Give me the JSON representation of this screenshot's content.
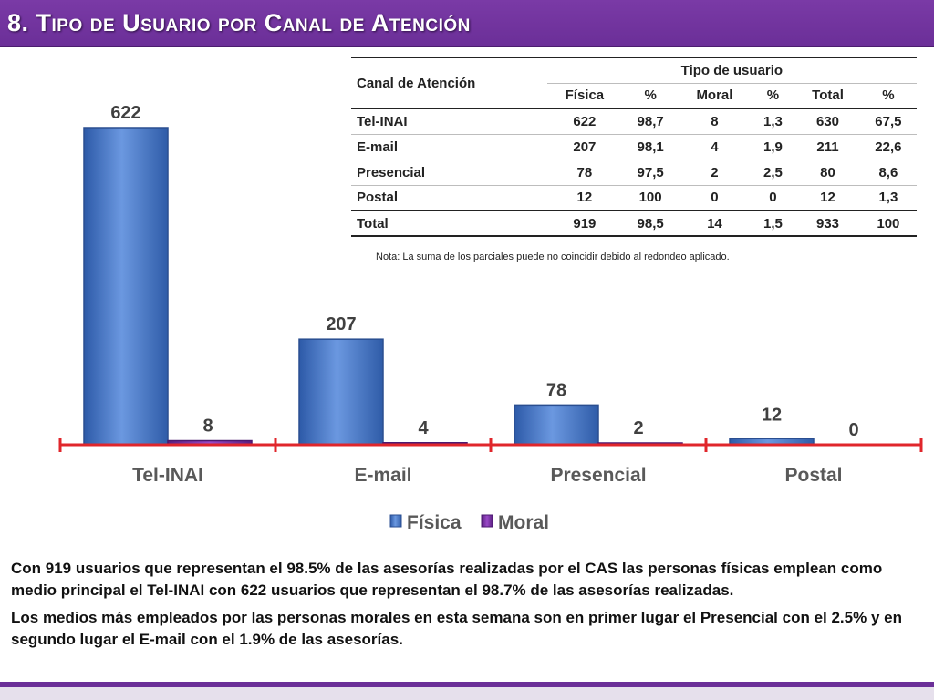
{
  "title": "8. Tipo de Usuario por Canal de Atención",
  "chart_data": {
    "type": "bar",
    "categories": [
      "Tel-INAI",
      "E-mail",
      "Presencial",
      "Postal"
    ],
    "series": [
      {
        "name": "Física",
        "values": [
          622,
          207,
          78,
          12
        ]
      },
      {
        "name": "Moral",
        "values": [
          8,
          4,
          2,
          0
        ]
      }
    ],
    "value_labels": [
      [
        "622",
        "8"
      ],
      [
        "207",
        "4"
      ],
      [
        "78",
        "2"
      ],
      [
        "12",
        "0"
      ]
    ],
    "ylim": [
      0,
      700
    ],
    "grid": false,
    "legend": "bottom",
    "colors": {
      "fisica": "#4a78c8",
      "moral": "#7a2fa0",
      "axis": "#e0262b"
    }
  },
  "table": {
    "header_canal": "Canal de Atención",
    "header_group": "Tipo de usuario",
    "columns": [
      "Física",
      "%",
      "Moral",
      "%",
      "Total",
      "%"
    ],
    "rows": [
      {
        "name": "Tel-INAI",
        "values": [
          "622",
          "98,7",
          "8",
          "1,3",
          "630",
          "67,5"
        ]
      },
      {
        "name": "E-mail",
        "values": [
          "207",
          "98,1",
          "4",
          "1,9",
          "211",
          "22,6"
        ]
      },
      {
        "name": "Presencial",
        "values": [
          "78",
          "97,5",
          "2",
          "2,5",
          "80",
          "8,6"
        ]
      },
      {
        "name": "Postal",
        "values": [
          "12",
          "100",
          "0",
          "0",
          "12",
          "1,3"
        ]
      }
    ],
    "total": {
      "name": "Total",
      "values": [
        "919",
        "98,5",
        "14",
        "1,5",
        "933",
        "100"
      ]
    }
  },
  "note": "Nota: La suma de los parciales puede no coincidir debido al redondeo aplicado.",
  "paragraphs": [
    "Con 919 usuarios que representan el 98.5% de las asesorías realizadas por el CAS las personas físicas emplean como medio principal el Tel-INAI con 622 usuarios que representan el 98.7% de las asesorías realizadas.",
    "Los medios más empleados por las personas morales en esta semana son en primer lugar el Presencial con el 2.5% y en segundo lugar el E-mail con el 1.9% de las asesorías."
  ]
}
